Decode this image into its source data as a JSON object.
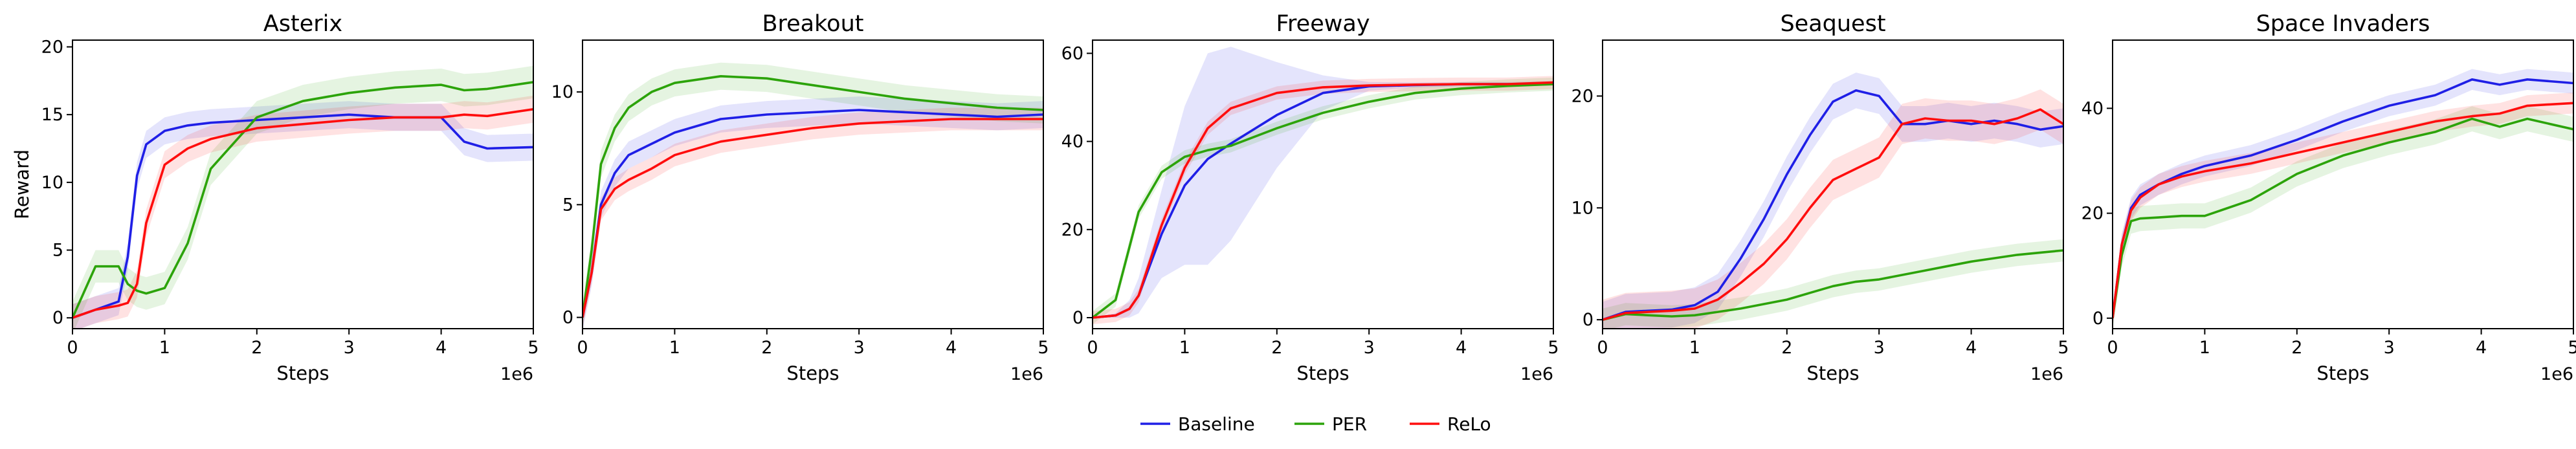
{
  "figure": {
    "shared_xlabel": "Steps",
    "x_offset_label": "1e6",
    "legend": [
      "Baseline",
      "PER",
      "ReLo"
    ],
    "colors": {
      "Baseline": "#1f1fe6",
      "PER": "#2ca30a",
      "ReLo": "#ff0d0d"
    }
  },
  "chart_data": [
    {
      "type": "line",
      "title": "Asterix",
      "xlabel": "Steps",
      "ylabel": "Reward",
      "xlim": [
        0,
        5
      ],
      "ylim": [
        -0.8,
        20.5
      ],
      "xticks": [
        0,
        1,
        2,
        3,
        4,
        5
      ],
      "yticks": [
        0,
        5,
        10,
        15,
        20
      ],
      "grid": false,
      "x": [
        0,
        0.25,
        0.5,
        0.6,
        0.7,
        0.8,
        1.0,
        1.25,
        1.5,
        2.0,
        2.5,
        3.0,
        3.5,
        4.0,
        4.25,
        4.5,
        5.0
      ],
      "series": [
        {
          "name": "Baseline",
          "values": [
            0,
            0.6,
            1.2,
            4.5,
            10.5,
            12.8,
            13.8,
            14.2,
            14.4,
            14.6,
            14.8,
            15.0,
            14.8,
            14.8,
            13.0,
            12.5,
            12.6
          ],
          "band": 1.0
        },
        {
          "name": "PER",
          "values": [
            0,
            3.8,
            3.8,
            2.5,
            2.0,
            1.8,
            2.2,
            5.5,
            11.0,
            14.8,
            16.0,
            16.6,
            17.0,
            17.2,
            16.8,
            16.9,
            17.4
          ],
          "band": 1.2
        },
        {
          "name": "ReLo",
          "values": [
            0,
            0.6,
            0.9,
            1.1,
            2.5,
            7.0,
            11.3,
            12.5,
            13.2,
            14.0,
            14.3,
            14.6,
            14.8,
            14.8,
            15.0,
            14.9,
            15.4
          ],
          "band": 1.0
        }
      ]
    },
    {
      "type": "line",
      "title": "Breakout",
      "xlabel": "Steps",
      "ylabel": "",
      "xlim": [
        0,
        5
      ],
      "ylim": [
        -0.5,
        12.3
      ],
      "xticks": [
        0,
        1,
        2,
        3,
        4,
        5
      ],
      "yticks": [
        0,
        5,
        10
      ],
      "grid": false,
      "x": [
        0,
        0.1,
        0.2,
        0.35,
        0.5,
        0.75,
        1.0,
        1.5,
        2.0,
        2.5,
        3.0,
        3.5,
        4.0,
        4.5,
        5.0
      ],
      "series": [
        {
          "name": "Baseline",
          "values": [
            0,
            2.0,
            5.0,
            6.4,
            7.2,
            7.7,
            8.2,
            8.8,
            9.0,
            9.1,
            9.2,
            9.1,
            9.0,
            8.9,
            9.0
          ],
          "band": 0.6
        },
        {
          "name": "PER",
          "values": [
            0,
            3.0,
            6.8,
            8.4,
            9.3,
            10.0,
            10.4,
            10.7,
            10.6,
            10.3,
            10.0,
            9.7,
            9.5,
            9.3,
            9.2
          ],
          "band": 0.6
        },
        {
          "name": "ReLo",
          "values": [
            0,
            2.0,
            4.8,
            5.7,
            6.1,
            6.6,
            7.2,
            7.8,
            8.1,
            8.4,
            8.6,
            8.7,
            8.8,
            8.8,
            8.8
          ],
          "band": 0.5
        }
      ]
    },
    {
      "type": "line",
      "title": "Freeway",
      "xlabel": "Steps",
      "ylabel": "",
      "xlim": [
        0,
        5
      ],
      "ylim": [
        -2.5,
        63
      ],
      "xticks": [
        0,
        1,
        2,
        3,
        4,
        5
      ],
      "yticks": [
        0,
        20,
        40,
        60
      ],
      "grid": false,
      "x": [
        0,
        0.25,
        0.4,
        0.5,
        0.75,
        1.0,
        1.25,
        1.5,
        2.0,
        2.5,
        3.0,
        3.5,
        4.0,
        4.5,
        5.0
      ],
      "series": [
        {
          "name": "Baseline",
          "values": [
            0,
            0.5,
            2.0,
            5.0,
            19.0,
            30.0,
            36.0,
            39.5,
            46.0,
            51.0,
            52.5,
            52.8,
            53.0,
            53.0,
            53.2
          ],
          "band": [
            0,
            0.5,
            2,
            4,
            10,
            18,
            24,
            22,
            12,
            4,
            1,
            0.6,
            0.5,
            0.5,
            0.5
          ]
        },
        {
          "name": "PER",
          "values": [
            0,
            4.0,
            16.0,
            24.0,
            33.0,
            36.5,
            38.0,
            39.0,
            43.0,
            46.5,
            49.0,
            51.0,
            52.0,
            52.6,
            53.0
          ],
          "band": 1.5
        },
        {
          "name": "ReLo",
          "values": [
            0,
            0.5,
            2.0,
            5.0,
            21.0,
            34.0,
            43.0,
            47.5,
            51.0,
            52.3,
            52.7,
            52.9,
            53.0,
            53.0,
            53.4
          ],
          "band": 1.5
        }
      ]
    },
    {
      "type": "line",
      "title": "Seaquest",
      "xlabel": "Steps",
      "ylabel": "",
      "xlim": [
        0,
        5
      ],
      "ylim": [
        -0.8,
        25
      ],
      "xticks": [
        0,
        1,
        2,
        3,
        4,
        5
      ],
      "yticks": [
        0,
        10,
        20
      ],
      "grid": false,
      "x": [
        0,
        0.25,
        0.5,
        0.75,
        1.0,
        1.25,
        1.5,
        1.75,
        2.0,
        2.25,
        2.5,
        2.75,
        3.0,
        3.25,
        3.5,
        3.75,
        4.0,
        4.25,
        4.5,
        4.75,
        5.0
      ],
      "series": [
        {
          "name": "Baseline",
          "values": [
            0,
            0.7,
            0.8,
            0.9,
            1.3,
            2.5,
            5.5,
            9.0,
            13.0,
            16.5,
            19.5,
            20.5,
            20.0,
            17.5,
            17.5,
            17.8,
            17.5,
            17.8,
            17.5,
            17.0,
            17.3
          ],
          "band": 1.6
        },
        {
          "name": "PER",
          "values": [
            0,
            0.5,
            0.4,
            0.3,
            0.4,
            0.7,
            1.0,
            1.4,
            1.8,
            2.4,
            3.0,
            3.4,
            3.6,
            4.0,
            4.4,
            4.8,
            5.2,
            5.5,
            5.8,
            6.0,
            6.2
          ],
          "band": 1.0
        },
        {
          "name": "ReLo",
          "values": [
            0,
            0.6,
            0.7,
            0.8,
            1.0,
            1.8,
            3.3,
            5.0,
            7.2,
            10.0,
            12.5,
            13.5,
            14.5,
            17.5,
            18.0,
            17.8,
            17.8,
            17.5,
            18.0,
            18.8,
            17.5
          ],
          "band": 1.8
        }
      ]
    },
    {
      "type": "line",
      "title": "Space Invaders",
      "xlabel": "Steps",
      "ylabel": "",
      "xlim": [
        0,
        5
      ],
      "ylim": [
        -2,
        53
      ],
      "xticks": [
        0,
        1,
        2,
        3,
        4,
        5
      ],
      "yticks": [
        0,
        20,
        40
      ],
      "grid": false,
      "x": [
        0,
        0.1,
        0.2,
        0.3,
        0.5,
        0.75,
        1.0,
        1.5,
        2.0,
        2.5,
        3.0,
        3.5,
        3.9,
        4.2,
        4.5,
        5.0
      ],
      "series": [
        {
          "name": "Baseline",
          "values": [
            0,
            14.0,
            21.0,
            23.5,
            25.5,
            27.5,
            29.0,
            31.0,
            34.0,
            37.5,
            40.5,
            42.5,
            45.5,
            44.5,
            45.5,
            44.8
          ],
          "band": 2.0
        },
        {
          "name": "PER",
          "values": [
            0,
            12.0,
            18.5,
            19.0,
            19.2,
            19.5,
            19.5,
            22.5,
            27.5,
            31.0,
            33.5,
            35.5,
            38.0,
            36.5,
            38.0,
            36.0
          ],
          "band": 2.4
        },
        {
          "name": "ReLo",
          "values": [
            0,
            14.0,
            20.5,
            23.0,
            25.5,
            27.0,
            28.0,
            29.5,
            31.5,
            33.5,
            35.5,
            37.5,
            38.5,
            39.0,
            40.5,
            41.0
          ],
          "band": 2.0
        }
      ]
    }
  ]
}
